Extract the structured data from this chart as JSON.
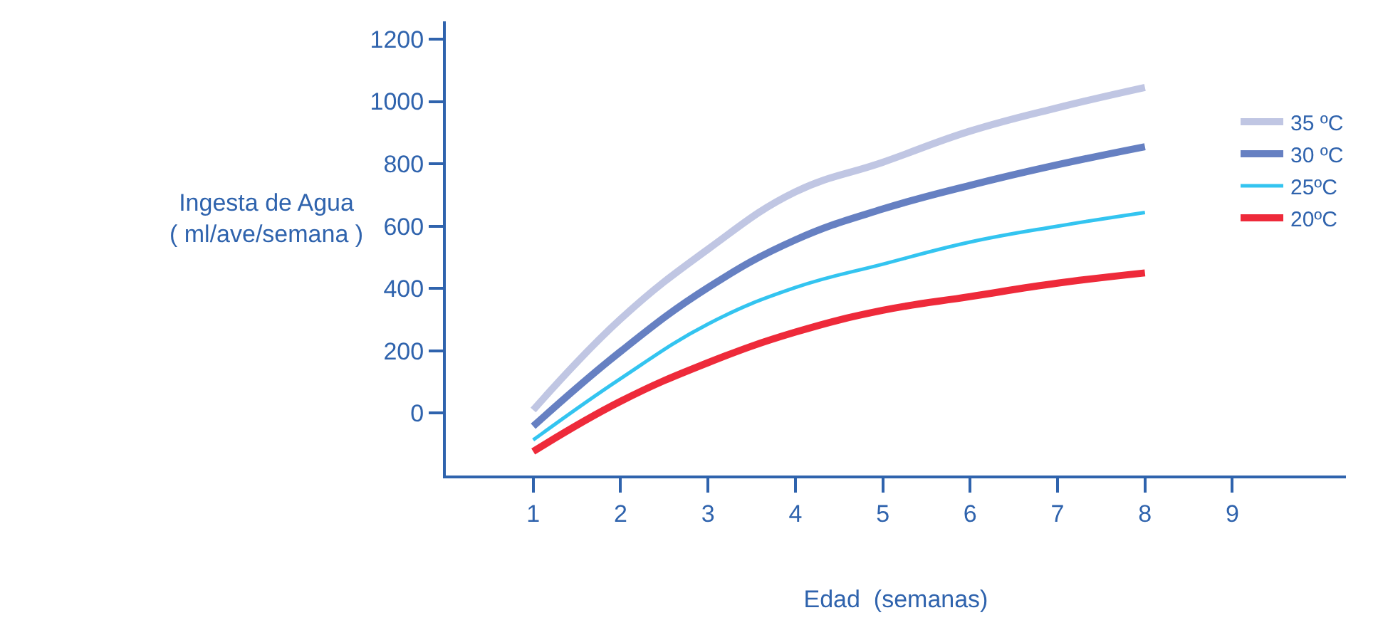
{
  "chart_data": {
    "type": "line",
    "xlabel": "Edad  (semanas)",
    "ylabel": "Ingesta de Agua\n( ml/ave/semana )",
    "x": [
      1,
      2,
      3,
      4,
      5,
      6,
      7,
      8
    ],
    "series": [
      {
        "name": "35 ºC",
        "color": "#c0c6e3",
        "values": [
          10,
          302,
          526,
          710,
          805,
          905,
          980,
          1045
        ]
      },
      {
        "name": "30 ºC",
        "color": "#6680c2",
        "values": [
          -42,
          198,
          403,
          556,
          655,
          731,
          797,
          855
        ]
      },
      {
        "name": "25ºC",
        "color": "#33c4f0",
        "values": [
          -86,
          111,
          286,
          403,
          478,
          549,
          600,
          644
        ]
      },
      {
        "name": "20ºC",
        "color": "#ee2a3a",
        "values": [
          -123,
          38,
          162,
          260,
          330,
          374,
          417,
          450
        ]
      }
    ],
    "xlim": [
      0,
      10.3
    ],
    "xticks": [
      1,
      2,
      3,
      4,
      5,
      6,
      7,
      8,
      9
    ],
    "ylim": [
      -200,
      1257
    ],
    "yticks": [
      0,
      200,
      400,
      600,
      800,
      1000,
      1200
    ],
    "legend": "right",
    "marker": "none",
    "line_style": "solid"
  }
}
